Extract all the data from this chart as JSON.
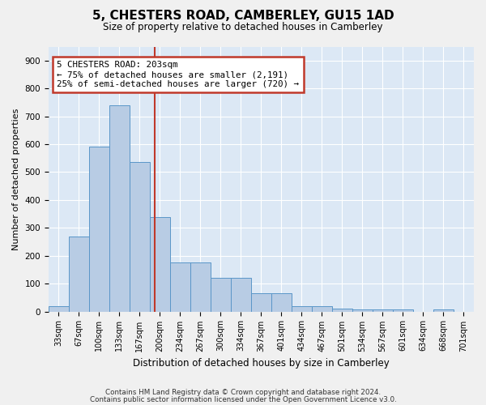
{
  "title": "5, CHESTERS ROAD, CAMBERLEY, GU15 1AD",
  "subtitle": "Size of property relative to detached houses in Camberley",
  "xlabel": "Distribution of detached houses by size in Camberley",
  "ylabel": "Number of detached properties",
  "bar_color": "#b8cce4",
  "bar_edge_color": "#5a96c8",
  "bins": [
    "33sqm",
    "67sqm",
    "100sqm",
    "133sqm",
    "167sqm",
    "200sqm",
    "234sqm",
    "267sqm",
    "300sqm",
    "334sqm",
    "367sqm",
    "401sqm",
    "434sqm",
    "467sqm",
    "501sqm",
    "534sqm",
    "567sqm",
    "601sqm",
    "634sqm",
    "668sqm",
    "701sqm"
  ],
  "values": [
    20,
    270,
    590,
    740,
    535,
    340,
    175,
    175,
    120,
    120,
    65,
    65,
    20,
    20,
    10,
    7,
    7,
    7,
    0,
    7,
    0
  ],
  "vline_x": 4.75,
  "vline_color": "#c0392b",
  "annotation_line1": "5 CHESTERS ROAD: 203sqm",
  "annotation_line2": "← 75% of detached houses are smaller (2,191)",
  "annotation_line3": "25% of semi-detached houses are larger (720) →",
  "annotation_box_color": "#c0392b",
  "ylim": [
    0,
    950
  ],
  "yticks": [
    0,
    100,
    200,
    300,
    400,
    500,
    600,
    700,
    800,
    900
  ],
  "footer1": "Contains HM Land Registry data © Crown copyright and database right 2024.",
  "footer2": "Contains public sector information licensed under the Open Government Licence v3.0.",
  "background_color": "#dce8f5",
  "fig_bg_color": "#f0f0f0",
  "grid_color": "#ffffff"
}
